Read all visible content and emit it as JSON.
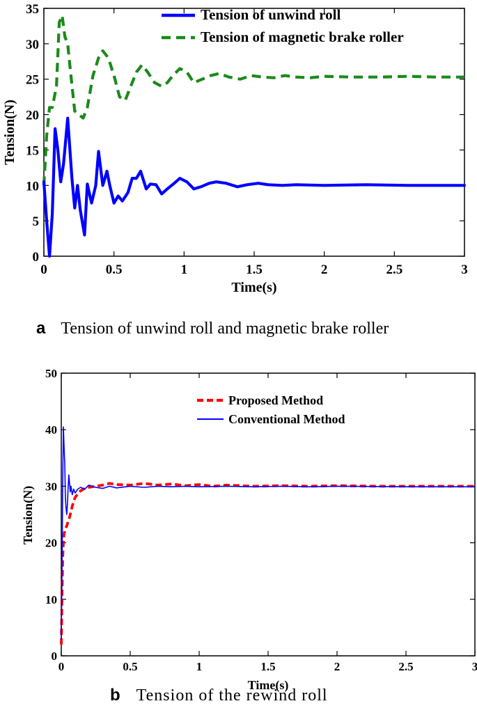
{
  "chart_data": [
    {
      "type": "line",
      "title": "",
      "xlabel": "Time(s)",
      "ylabel": "Tension(N)",
      "xlim": [
        0,
        3
      ],
      "ylim": [
        0,
        35
      ],
      "xticks": [
        "0",
        "0.5",
        "1",
        "1.5",
        "2",
        "2.5",
        "3"
      ],
      "yticks": [
        "0",
        "5",
        "10",
        "15",
        "20",
        "25",
        "30",
        "35"
      ],
      "grid": false,
      "legend_position": "top-right",
      "caption_letter": "a",
      "caption_text": "Tension of unwind roll and magnetic brake roller",
      "series": [
        {
          "name": "Tension of unwind roll",
          "color": "#0000ff",
          "style": "solid",
          "x": [
            0,
            0.02,
            0.04,
            0.06,
            0.08,
            0.1,
            0.12,
            0.14,
            0.17,
            0.2,
            0.22,
            0.24,
            0.26,
            0.29,
            0.31,
            0.34,
            0.37,
            0.39,
            0.42,
            0.45,
            0.47,
            0.5,
            0.53,
            0.56,
            0.6,
            0.63,
            0.66,
            0.69,
            0.73,
            0.76,
            0.8,
            0.84,
            0.88,
            0.93,
            0.97,
            1.02,
            1.07,
            1.12,
            1.18,
            1.23,
            1.3,
            1.38,
            1.45,
            1.53,
            1.6,
            1.7,
            1.8,
            2.0,
            2.3,
            2.6,
            3.0
          ],
          "y": [
            10.5,
            5,
            0,
            6,
            18,
            15,
            10.5,
            13,
            19.5,
            11,
            6.8,
            10,
            6.5,
            3,
            10.2,
            7.5,
            10,
            14.8,
            10,
            12,
            10,
            7.5,
            8.5,
            7.8,
            9,
            11,
            11,
            12,
            9.5,
            10.2,
            10.1,
            8.8,
            9.5,
            10.3,
            11,
            10.5,
            9.5,
            9.8,
            10.3,
            10.5,
            10.3,
            9.8,
            10.1,
            10.3,
            10.1,
            10,
            10.1,
            10,
            10.1,
            10,
            10
          ]
        },
        {
          "name": "Tension of magnetic brake roller",
          "color": "#1a8a1a",
          "style": "dashed",
          "x": [
            0,
            0.02,
            0.04,
            0.06,
            0.09,
            0.11,
            0.13,
            0.15,
            0.17,
            0.19,
            0.22,
            0.25,
            0.28,
            0.31,
            0.35,
            0.39,
            0.42,
            0.46,
            0.5,
            0.54,
            0.58,
            0.62,
            0.66,
            0.7,
            0.74,
            0.79,
            0.84,
            0.88,
            0.92,
            0.97,
            1.02,
            1.07,
            1.13,
            1.19,
            1.25,
            1.32,
            1.4,
            1.48,
            1.56,
            1.64,
            1.72,
            1.8,
            1.9,
            2.0,
            2.2,
            2.4,
            2.6,
            2.8,
            3.0
          ],
          "y": [
            10,
            17,
            21,
            21,
            24,
            33,
            34,
            31,
            30,
            26,
            20.5,
            20,
            19.5,
            21,
            25.5,
            28,
            29,
            28,
            25.5,
            22.5,
            22,
            24,
            26,
            27,
            26,
            24.5,
            24,
            24.5,
            25.5,
            26.5,
            26,
            24.5,
            25,
            25.5,
            25.8,
            25.3,
            25,
            25.5,
            25.3,
            25.2,
            25.5,
            25.3,
            25.2,
            25.4,
            25.3,
            25.3,
            25.4,
            25.3,
            25.3
          ]
        }
      ]
    },
    {
      "type": "line",
      "title": "",
      "xlabel": "Time(s)",
      "ylabel": "Tension(N)",
      "xlim": [
        0,
        3
      ],
      "ylim": [
        0,
        50
      ],
      "xticks": [
        "0",
        "0.5",
        "1",
        "1.5",
        "2",
        "2.5",
        "3"
      ],
      "yticks": [
        "0",
        "10",
        "20",
        "30",
        "40",
        "50"
      ],
      "grid": false,
      "legend_position": "top-right",
      "caption_letter": "b",
      "caption_text": "Tension of the rewind roll",
      "series": [
        {
          "name": "Proposed Method",
          "color": "#ff0000",
          "style": "dashed",
          "x": [
            0,
            0.005,
            0.01,
            0.015,
            0.02,
            0.03,
            0.04,
            0.06,
            0.08,
            0.1,
            0.13,
            0.16,
            0.2,
            0.25,
            0.3,
            0.35,
            0.4,
            0.5,
            0.6,
            0.7,
            0.8,
            0.9,
            1.0,
            1.1,
            1.2,
            1.3,
            1.4,
            1.6,
            1.8,
            2.0,
            2.3,
            2.6,
            3.0
          ],
          "y": [
            2,
            10,
            17,
            20,
            21.5,
            22.5,
            23,
            24.5,
            26.5,
            28,
            29,
            29.5,
            29.8,
            30,
            30.2,
            30.5,
            30.3,
            30.2,
            30.5,
            30.2,
            30.4,
            30.1,
            30.3,
            30,
            30.2,
            30.1,
            30,
            30.1,
            30,
            30.1,
            30,
            30,
            30
          ]
        },
        {
          "name": "Conventional Method",
          "color": "#0000ff",
          "style": "solid",
          "x": [
            0,
            0.005,
            0.01,
            0.015,
            0.02,
            0.025,
            0.03,
            0.035,
            0.04,
            0.045,
            0.05,
            0.055,
            0.06,
            0.065,
            0.07,
            0.08,
            0.09,
            0.1,
            0.12,
            0.14,
            0.17,
            0.2,
            0.25,
            0.3,
            0.35,
            0.4,
            0.5,
            0.6,
            0.7,
            0.8,
            0.9,
            1.0,
            1.2,
            1.4,
            1.6,
            1.8,
            2.0,
            2.5,
            3.0
          ],
          "y": [
            3,
            15,
            30,
            40.5,
            37,
            34,
            28,
            26,
            25,
            27,
            30,
            32,
            30.5,
            29,
            30,
            28.5,
            29.5,
            28.8,
            29.5,
            29.8,
            29.5,
            30.2,
            29.8,
            29.6,
            30,
            29.7,
            30,
            29.8,
            30,
            29.9,
            30,
            29.9,
            30,
            29.9,
            30,
            29.9,
            30,
            29.9,
            29.9
          ]
        }
      ]
    }
  ]
}
